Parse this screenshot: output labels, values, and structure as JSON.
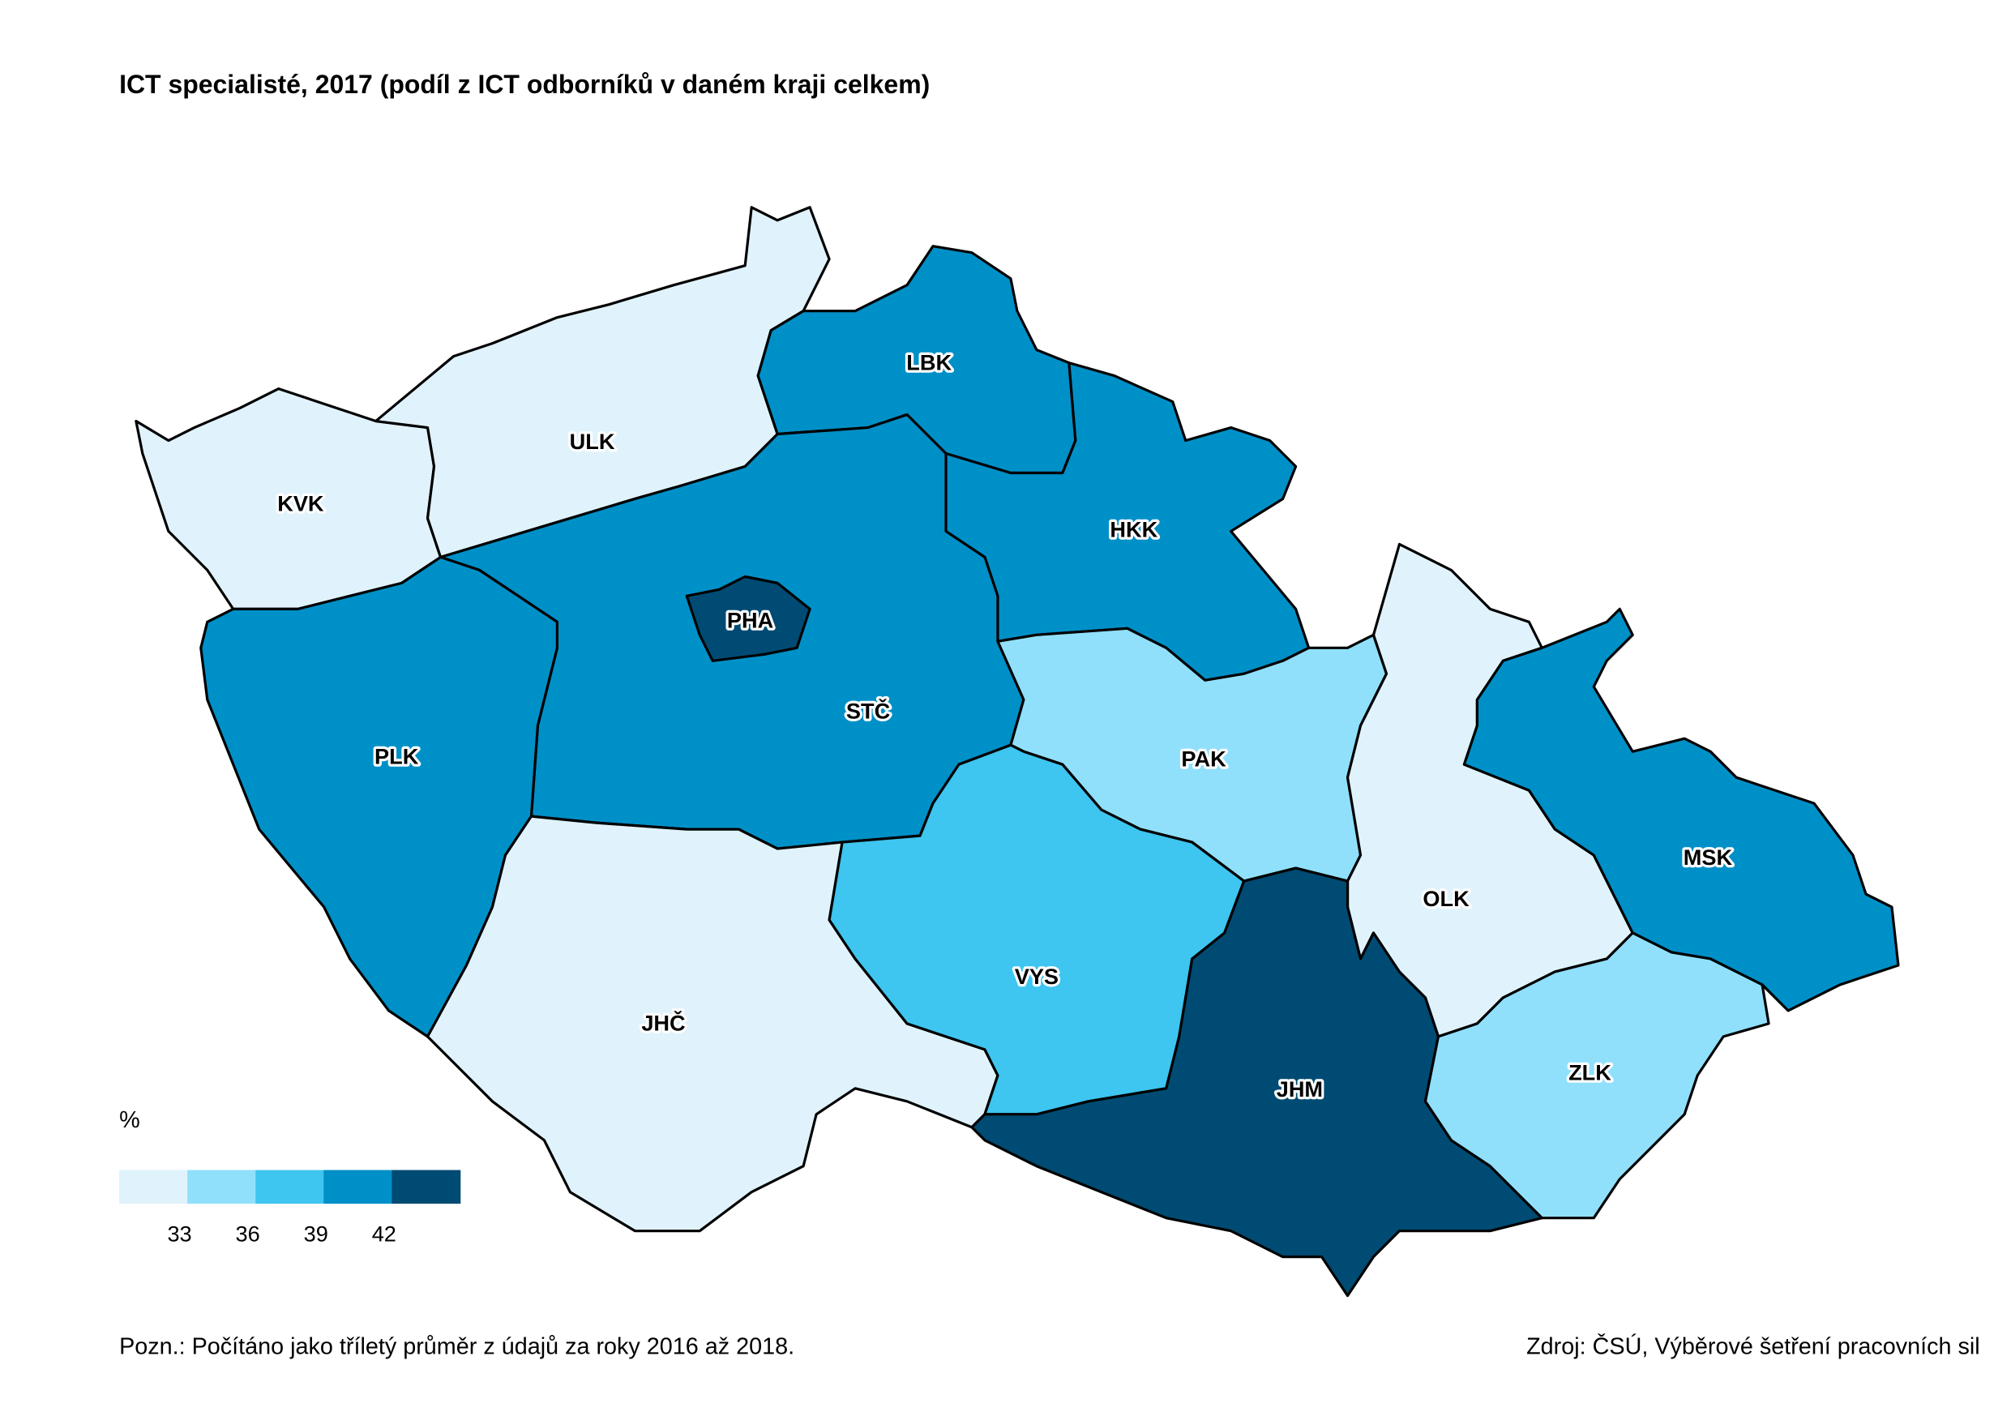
{
  "chart_data": {
    "type": "map",
    "title": "ICT specialisté, 2017 (podíl z ICT odborníků v daném kraji celkem)",
    "regions": [
      {
        "name": "KVK",
        "color": "#e0f3fc"
      },
      {
        "name": "ULK",
        "color": "#e0f3fc"
      },
      {
        "name": "LBK",
        "color": "#0090c8"
      },
      {
        "name": "HKK",
        "color": "#0090c8"
      },
      {
        "name": "STČ",
        "color": "#0090c8"
      },
      {
        "name": "PHA",
        "color": "#004b73"
      },
      {
        "name": "PLK",
        "color": "#0090c8"
      },
      {
        "name": "JHČ",
        "color": "#e0f3fc"
      },
      {
        "name": "PAK",
        "color": "#90e0fc"
      },
      {
        "name": "VYS",
        "color": "#3ec5f0"
      },
      {
        "name": "OLK",
        "color": "#e0f3fc"
      },
      {
        "name": "MSK",
        "color": "#0090c8"
      },
      {
        "name": "JHM",
        "color": "#004b73"
      },
      {
        "name": "ZLK",
        "color": "#90e0fc"
      }
    ],
    "legend": {
      "title": "%",
      "colors": [
        "#e0f3fc",
        "#90e0fc",
        "#3ec5f0",
        "#0090c8",
        "#004b73"
      ],
      "ticks": [
        33,
        36,
        39,
        42
      ]
    },
    "note": "Pozn.: Počítáno jako tříletý průměr z údajů za roky 2016 až 2018.",
    "source": "Zdroj: ČSÚ, Výběrové šetření pracovních sil"
  }
}
